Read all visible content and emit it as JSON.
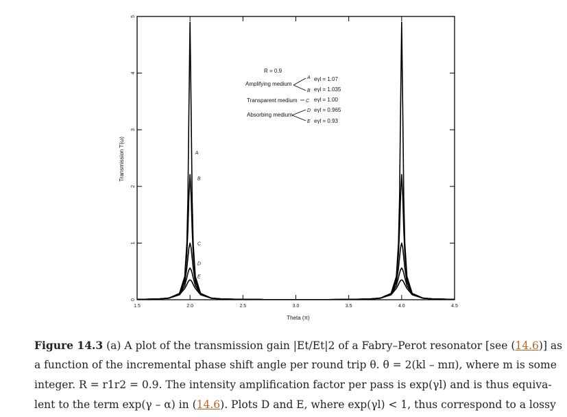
{
  "chart_data": {
    "type": "line",
    "x": [
      1.5,
      1.7,
      1.8,
      1.9,
      1.95,
      1.97,
      1.98,
      1.99,
      2.0,
      2.01,
      2.02,
      2.03,
      2.05,
      2.1,
      2.2,
      2.3,
      2.5,
      2.7,
      3.0,
      3.3,
      3.5,
      3.7,
      3.8,
      3.9,
      3.95,
      3.97,
      3.98,
      3.99,
      4.0,
      4.01,
      4.02,
      4.03,
      4.05,
      4.1,
      4.2,
      4.3,
      4.5
    ],
    "series": [
      {
        "name": "A",
        "color": "#000000",
        "values": [
          0.006,
          0.013,
          0.029,
          0.11,
          0.41,
          1.0,
          1.79,
          3.42,
          4.9,
          3.42,
          1.79,
          1.0,
          0.41,
          0.11,
          0.029,
          0.013,
          0.006,
          0.003,
          0.003,
          0.003,
          0.006,
          0.013,
          0.029,
          0.11,
          0.41,
          1.0,
          1.79,
          3.42,
          4.9,
          3.42,
          1.79,
          1.0,
          0.41,
          0.11,
          0.029,
          0.013,
          0.006
        ]
      },
      {
        "name": "B",
        "color": "#000000",
        "values": [
          0.006,
          0.013,
          0.029,
          0.11,
          0.37,
          0.8,
          1.24,
          1.84,
          2.21,
          1.84,
          1.24,
          0.8,
          0.37,
          0.11,
          0.029,
          0.013,
          0.006,
          0.003,
          0.003,
          0.003,
          0.006,
          0.013,
          0.029,
          0.11,
          0.37,
          0.8,
          1.24,
          1.84,
          2.21,
          1.84,
          1.24,
          0.8,
          0.37,
          0.11,
          0.029,
          0.013,
          0.006
        ]
      },
      {
        "name": "C",
        "color": "#000000",
        "values": [
          0.006,
          0.013,
          0.028,
          0.1,
          0.31,
          0.56,
          0.74,
          0.92,
          1.0,
          0.92,
          0.74,
          0.56,
          0.31,
          0.1,
          0.028,
          0.013,
          0.006,
          0.003,
          0.003,
          0.003,
          0.006,
          0.013,
          0.028,
          0.1,
          0.31,
          0.56,
          0.74,
          0.92,
          1.0,
          0.92,
          0.74,
          0.56,
          0.31,
          0.1,
          0.028,
          0.013,
          0.006
        ]
      },
      {
        "name": "D",
        "color": "#000000",
        "values": [
          0.006,
          0.013,
          0.028,
          0.094,
          0.25,
          0.39,
          0.47,
          0.53,
          0.56,
          0.53,
          0.47,
          0.39,
          0.25,
          0.094,
          0.028,
          0.013,
          0.006,
          0.003,
          0.003,
          0.003,
          0.006,
          0.013,
          0.028,
          0.094,
          0.25,
          0.39,
          0.47,
          0.53,
          0.56,
          0.53,
          0.47,
          0.39,
          0.25,
          0.094,
          0.028,
          0.013,
          0.006
        ]
      },
      {
        "name": "E",
        "color": "#000000",
        "values": [
          0.006,
          0.013,
          0.027,
          0.086,
          0.2,
          0.27,
          0.31,
          0.34,
          0.35,
          0.34,
          0.31,
          0.27,
          0.2,
          0.086,
          0.027,
          0.013,
          0.006,
          0.003,
          0.003,
          0.003,
          0.006,
          0.013,
          0.027,
          0.086,
          0.2,
          0.27,
          0.31,
          0.34,
          0.35,
          0.34,
          0.31,
          0.27,
          0.2,
          0.086,
          0.027,
          0.013,
          0.006
        ]
      }
    ],
    "xlim": [
      1.5,
      4.5
    ],
    "ylim": [
      0,
      5
    ],
    "xticks": [
      1.5,
      {
        "value": 2,
        "label": "2.0"
      },
      2.5,
      {
        "value": 3,
        "label": "3.0"
      },
      3.5,
      {
        "value": 4,
        "label": "4.0"
      },
      4.5
    ],
    "yticks": [
      0,
      1,
      2,
      3,
      4,
      5
    ],
    "xlabel": "Theta (π)",
    "ylabel": "Transmission T(ω)",
    "annotations": {
      "reflectance": "R = 0.9",
      "amplifying": "Amplifying medium",
      "transparent": "Transparent medium",
      "absorbing": "Absorbing medium",
      "gains": [
        "eγl = 1.07",
        "eγl = 1.035",
        "eγl = 1.00",
        "eγl = 0.965",
        "eγl = 0.93"
      ]
    }
  },
  "caption": {
    "lines": [
      [
        "Figure 14.3",
        " (a) A plot of the transmission gain |Et/Et|2 of a Fabry–Perot resonator [see (",
        "14.6",
        ")] as"
      ],
      [
        "a function of the incremental phase shift angle per round trip θ. θ = 2(kl – mπ), where m is some"
      ],
      [
        "integer. R = r1r2 = 0.9. The intensity amplification factor per pass is exp(γl) and is thus equiva-"
      ],
      [
        "lent to the term exp(γ – α) in (",
        "14.6",
        "). Plots D and E, where exp(γl) < 1, thus correspond to a lossy"
      ]
    ]
  }
}
